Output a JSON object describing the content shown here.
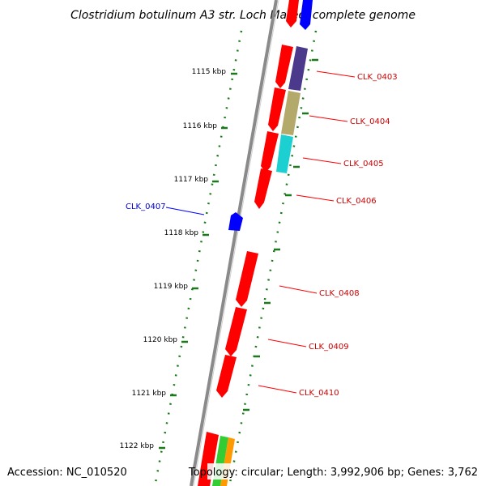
{
  "title": "Clostridium botulinum A3 str. Loch Maree, complete genome",
  "footer": {
    "accession": "Accession: NC_010520",
    "topology": "Topology: circular; Length: 3,992,906 bp; Genes: 3,762"
  },
  "colors": {
    "red": "#ff0000",
    "blue": "#0000ff",
    "purple": "#4b3a8c",
    "khaki": "#b3a96a",
    "cyan": "#1ccfd0",
    "ticks": "#1a7a1a",
    "backbone": "#8a8a8a",
    "label_red": "#cc0000",
    "label_blue": "#0000cc"
  },
  "kbp_ticks": [
    "1115 kbp",
    "1116 kbp",
    "1117 kbp",
    "1118 kbp",
    "1119 kbp",
    "1120 kbp",
    "1121 kbp",
    "1122 kbp"
  ],
  "gene_labels": [
    {
      "id": "clk-0403",
      "text": "CLK_0403"
    },
    {
      "id": "clk-0404",
      "text": "CLK_0404"
    },
    {
      "id": "clk-0405",
      "text": "CLK_0405"
    },
    {
      "id": "clk-0406",
      "text": "CLK_0406"
    },
    {
      "id": "clk-0407",
      "text": "CLK_0407"
    },
    {
      "id": "clk-0408",
      "text": "CLK_0408"
    },
    {
      "id": "clk-0409",
      "text": "CLK_0409"
    },
    {
      "id": "clk-0410",
      "text": "CLK_0410"
    }
  ]
}
